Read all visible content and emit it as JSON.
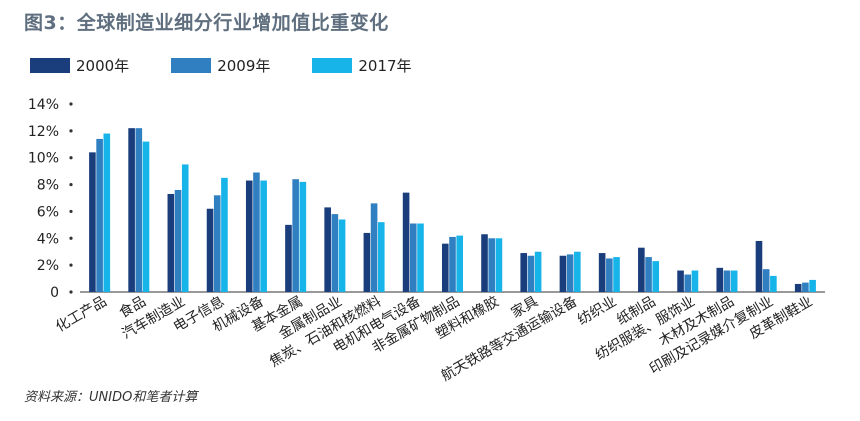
{
  "title": "图3：全球制造业细分行业增加值比重变化",
  "source": "资料来源：UNIDO和笔者计算",
  "colors": {
    "s2000": "#1a3d7c",
    "s2009": "#2f7fc1",
    "s2017": "#16b4e8",
    "axis": "#333333"
  },
  "chart_data": {
    "type": "bar",
    "ylim": [
      0,
      14
    ],
    "yticks": [
      "0",
      "2%",
      "4%",
      "6%",
      "8%",
      "10%",
      "12%",
      "14%"
    ],
    "ytick_values": [
      0,
      2,
      4,
      6,
      8,
      10,
      12,
      14
    ],
    "categories": [
      "化工产品",
      "食品",
      "汽车制造业",
      "电子信息",
      "机械设备",
      "基本金属",
      "金属制品业",
      "焦炭、石油和核燃料",
      "电机和电气设备",
      "非金属矿物制品",
      "塑料和橡胶",
      "家具",
      "航天铁路等交通运输设备",
      "纺织业",
      "纸制品",
      "纺织服装、服饰业",
      "木材及木制品",
      "印刷及记录媒介复制业",
      "皮革制鞋业"
    ],
    "series": [
      {
        "name": "2000年",
        "values": [
          10.4,
          12.2,
          7.3,
          6.2,
          8.3,
          5.0,
          6.3,
          4.4,
          7.4,
          3.6,
          4.3,
          2.9,
          2.7,
          2.9,
          3.3,
          1.6,
          1.8,
          3.8,
          0.6
        ]
      },
      {
        "name": "2009年",
        "values": [
          11.4,
          12.2,
          7.6,
          7.2,
          8.9,
          8.4,
          5.8,
          6.6,
          5.1,
          4.1,
          4.0,
          2.7,
          2.8,
          2.5,
          2.6,
          1.3,
          1.6,
          1.7,
          0.7
        ]
      },
      {
        "name": "2017年",
        "values": [
          11.8,
          11.2,
          9.5,
          8.5,
          8.3,
          8.2,
          5.4,
          5.2,
          5.1,
          4.2,
          4.0,
          3.0,
          3.0,
          2.6,
          2.3,
          1.6,
          1.6,
          1.2,
          0.9
        ]
      }
    ],
    "legend_position": "top-left",
    "grid": false
  }
}
